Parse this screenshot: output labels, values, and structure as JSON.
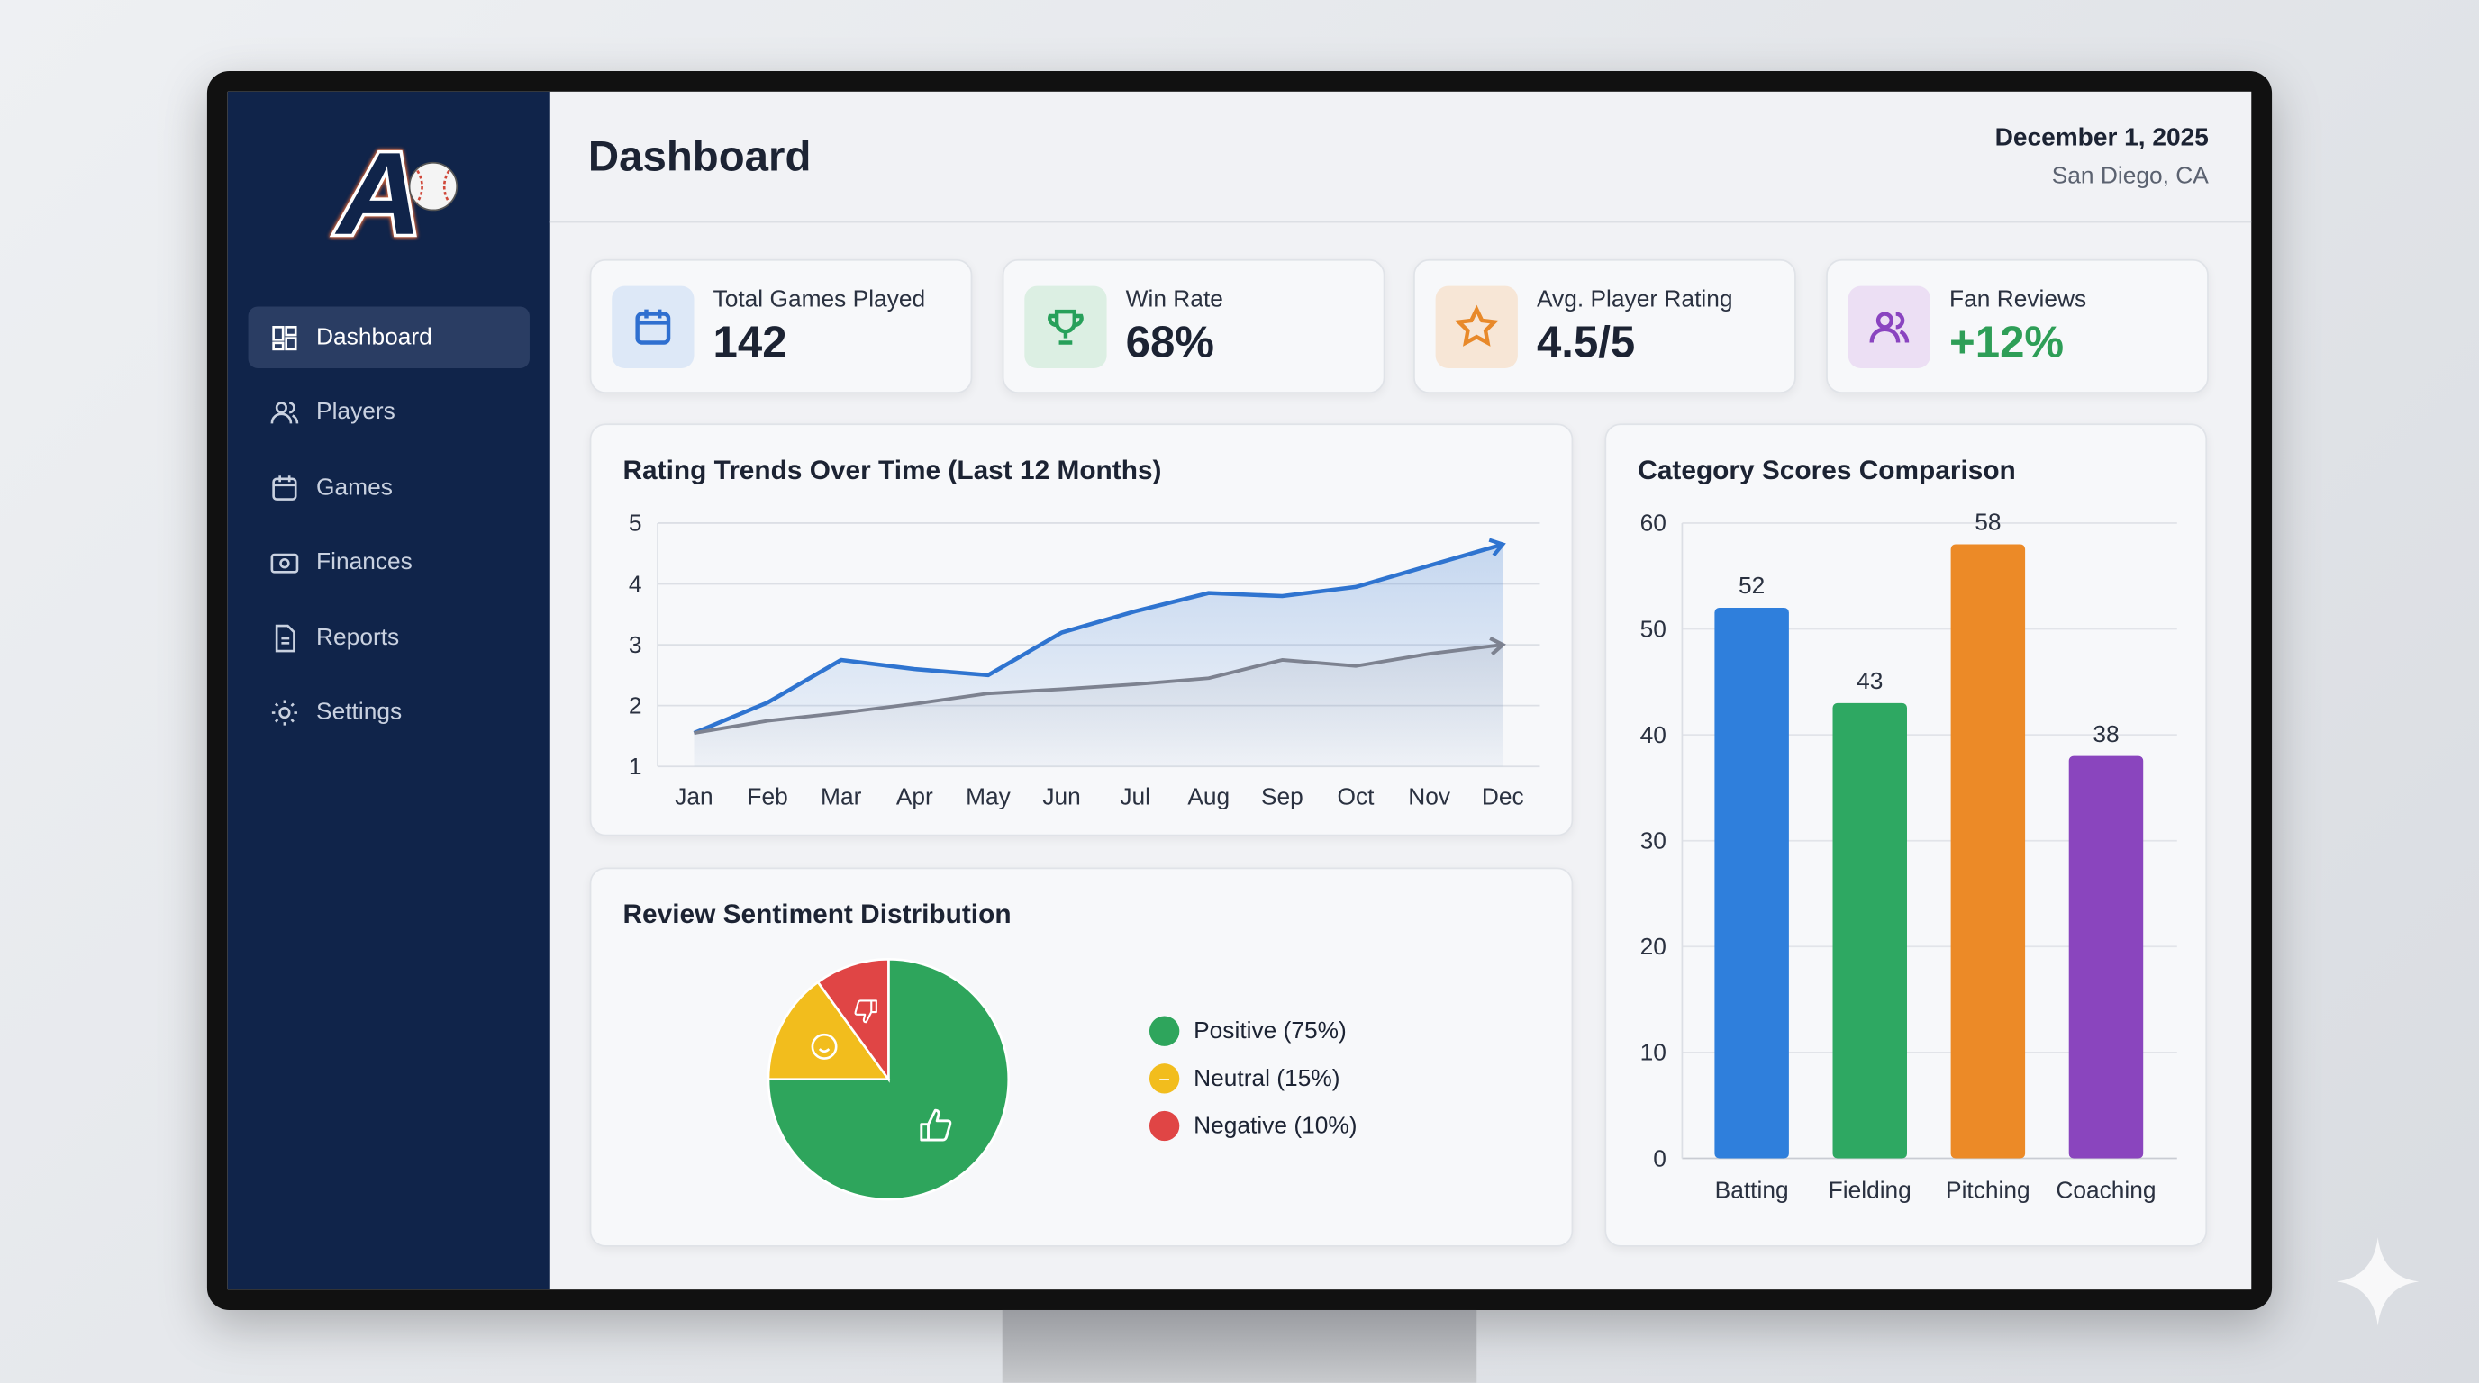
{
  "header": {
    "title": "Dashboard",
    "date": "December 1, 2025",
    "location": "San Diego, CA"
  },
  "logo": {
    "text": "A"
  },
  "sidebar": {
    "items": [
      {
        "label": "Dashboard",
        "icon": "grid-icon",
        "active": true
      },
      {
        "label": "Players",
        "icon": "users-icon"
      },
      {
        "label": "Games",
        "icon": "calendar-icon"
      },
      {
        "label": "Finances",
        "icon": "money-icon"
      },
      {
        "label": "Reports",
        "icon": "document-icon"
      },
      {
        "label": "Settings",
        "icon": "gear-icon"
      }
    ]
  },
  "kpis": [
    {
      "label": "Total Games Played",
      "value": "142",
      "icon": "calendar-icon",
      "color": "#2f6fd0",
      "bg": "#dde8f7"
    },
    {
      "label": "Win Rate",
      "value": "68%",
      "icon": "trophy-icon",
      "color": "#27a05a",
      "bg": "#dcefe3"
    },
    {
      "label": "Avg. Player Rating",
      "value": "4.5/5",
      "icon": "star-icon",
      "color": "#e8892a",
      "bg": "#f7e6d6"
    },
    {
      "label": "Fan Reviews",
      "value": "+12%",
      "icon": "users-icon",
      "color": "#8a44c0",
      "bg": "#ecdff4",
      "value_color": "#2e9e57"
    }
  ],
  "chart_data": [
    {
      "type": "line",
      "title": "Rating Trends Over Time (Last 12 Months)",
      "categories": [
        "Jan",
        "Feb",
        "Mar",
        "Apr",
        "May",
        "Jun",
        "Jul",
        "Aug",
        "Sep",
        "Oct",
        "Nov",
        "Dec"
      ],
      "ylim": [
        1,
        5
      ],
      "yticks": [
        "1",
        "2",
        "3",
        "4",
        "5"
      ],
      "grid": true,
      "series": [
        {
          "color": "#2f74d0",
          "values": [
            1.55,
            2.05,
            2.75,
            2.6,
            2.5,
            3.2,
            3.55,
            3.85,
            3.8,
            3.95,
            4.3,
            4.65
          ]
        },
        {
          "color": "#7d8290",
          "values": [
            1.55,
            1.75,
            1.88,
            2.03,
            2.2,
            2.27,
            2.35,
            2.45,
            2.75,
            2.65,
            2.85,
            3.0
          ]
        }
      ]
    },
    {
      "type": "bar",
      "title": "Category Scores Comparison",
      "categories": [
        "Batting",
        "Fielding",
        "Pitching",
        "Coaching"
      ],
      "values": [
        52,
        43,
        58,
        38
      ],
      "colors": [
        "#2f7fdc",
        "#2ea862",
        "#ec8a27",
        "#8a45be"
      ],
      "ylim": [
        0,
        60
      ],
      "yticks": [
        "0",
        "10",
        "20",
        "30",
        "40",
        "50",
        "60"
      ],
      "grid": true
    },
    {
      "type": "pie",
      "title": "Review Sentiment Distribution",
      "slices": [
        {
          "label": "Positive (75%)",
          "value": 75,
          "color": "#2ea55c",
          "icon": "thumbs-up-icon"
        },
        {
          "label": "Neutral (15%)",
          "value": 15,
          "color": "#f2bd1d",
          "icon": "smiley-icon"
        },
        {
          "label": "Negative (10%)",
          "value": 10,
          "color": "#e04545",
          "icon": "thumbs-down-icon"
        }
      ],
      "legend": "right"
    }
  ]
}
